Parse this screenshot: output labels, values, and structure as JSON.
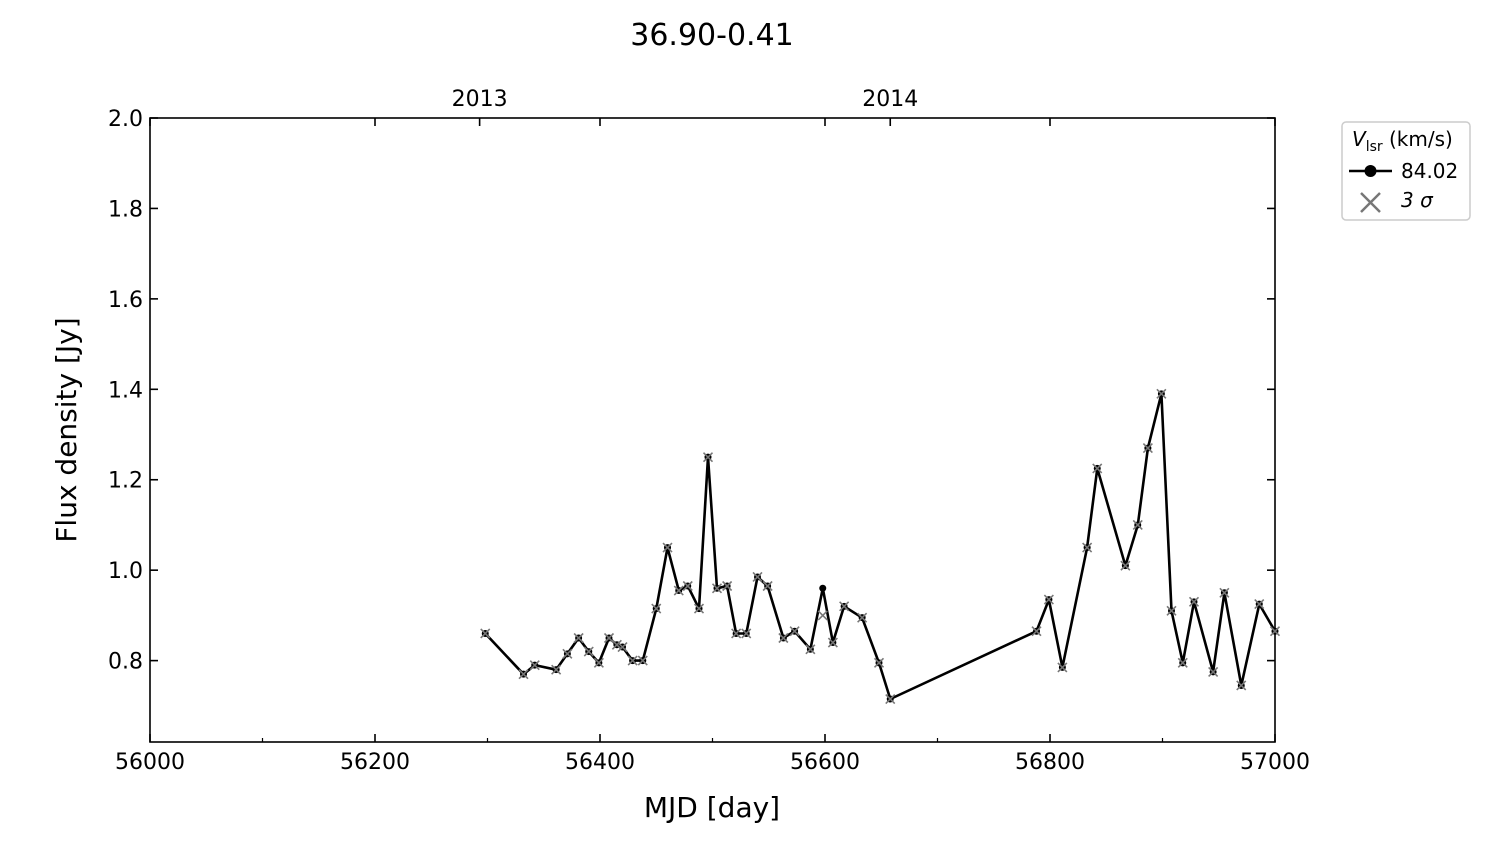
{
  "chart_data": {
    "type": "line",
    "title": "36.90-0.41",
    "xlabel": "MJD [day]",
    "ylabel": "Flux density [Jy]",
    "xlim": [
      56000,
      57000
    ],
    "ylim": [
      0.62,
      2.0
    ],
    "xticks": [
      56000,
      56200,
      56400,
      56600,
      56800,
      57000
    ],
    "xtick_labels": [
      "56000",
      "56200",
      "56400",
      "56600",
      "56800",
      "57000"
    ],
    "xminor": [
      56100,
      56300,
      56500,
      56700,
      56900
    ],
    "yticks": [
      0.8,
      1.0,
      1.2,
      1.4,
      1.6,
      1.8,
      2.0
    ],
    "ytick_labels": [
      "0.8",
      "1.0",
      "1.2",
      "1.4",
      "1.6",
      "1.8",
      "2.0"
    ],
    "top_axis": {
      "ticks": [
        56293,
        56658
      ],
      "labels": [
        "2013",
        "2014"
      ]
    },
    "grid": false,
    "legend": {
      "placement": "outside-right-top",
      "title_main": "V",
      "title_sub": "lsr",
      "title_unit": " (km/s)",
      "series_label": "84.02",
      "sigma_label": "3 σ"
    },
    "colors": {
      "series": "#000000",
      "sigma": "#777777"
    },
    "series": [
      {
        "name": "84.02",
        "x": [
          56298,
          56332,
          56342,
          56361,
          56371,
          56381,
          56390,
          56399,
          56408,
          56415,
          56420,
          56429,
          56438,
          56450,
          56460,
          56470,
          56478,
          56488,
          56496,
          56504,
          56513,
          56521,
          56530,
          56540,
          56549,
          56563,
          56573,
          56587,
          56598,
          56607,
          56617,
          56633,
          56648,
          56658,
          56788,
          56799,
          56811,
          56833,
          56842,
          56867,
          56878,
          56887,
          56899,
          56908,
          56918,
          56928,
          56945,
          56955,
          56970,
          56986,
          57000
        ],
        "y": [
          0.86,
          0.77,
          0.79,
          0.78,
          0.815,
          0.85,
          0.82,
          0.795,
          0.85,
          0.835,
          0.83,
          0.8,
          0.8,
          0.915,
          1.05,
          0.955,
          0.965,
          0.915,
          1.25,
          0.96,
          0.965,
          0.86,
          0.86,
          0.985,
          0.965,
          0.85,
          0.865,
          0.825,
          0.96,
          0.84,
          0.92,
          0.895,
          0.795,
          0.715,
          0.865,
          0.935,
          0.785,
          1.05,
          1.225,
          1.01,
          1.1,
          1.27,
          1.39,
          0.91,
          0.795,
          0.93,
          0.775,
          0.95,
          0.745,
          0.925,
          0.865
        ]
      }
    ],
    "sigma_3": {
      "x": [
        56298,
        56332,
        56342,
        56361,
        56371,
        56381,
        56390,
        56399,
        56408,
        56415,
        56420,
        56429,
        56438,
        56450,
        56460,
        56470,
        56478,
        56488,
        56496,
        56504,
        56513,
        56521,
        56530,
        56540,
        56549,
        56563,
        56573,
        56587,
        56598,
        56607,
        56617,
        56633,
        56648,
        56658,
        56788,
        56799,
        56811,
        56833,
        56842,
        56867,
        56878,
        56887,
        56899,
        56908,
        56918,
        56928,
        56945,
        56955,
        56970,
        56986,
        57000
      ],
      "y": [
        0.86,
        0.77,
        0.79,
        0.78,
        0.815,
        0.85,
        0.82,
        0.795,
        0.85,
        0.835,
        0.83,
        0.8,
        0.8,
        0.915,
        1.05,
        0.955,
        0.965,
        0.915,
        1.25,
        0.96,
        0.965,
        0.86,
        0.86,
        0.985,
        0.965,
        0.85,
        0.865,
        0.825,
        0.9,
        0.84,
        0.92,
        0.895,
        0.795,
        0.715,
        0.865,
        0.935,
        0.785,
        1.05,
        1.225,
        1.01,
        1.1,
        1.27,
        1.39,
        0.91,
        0.795,
        0.93,
        0.775,
        0.95,
        0.745,
        0.925,
        0.865
      ]
    }
  }
}
